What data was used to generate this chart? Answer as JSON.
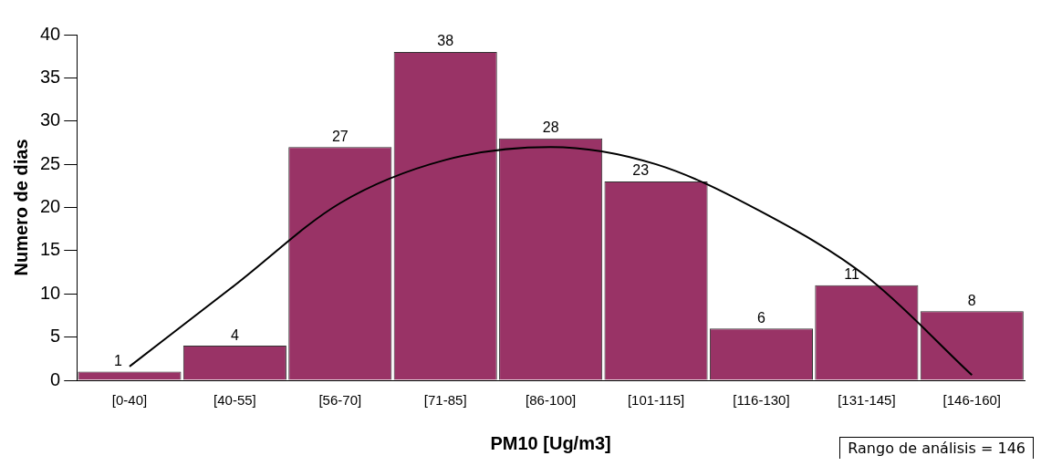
{
  "chart_data": {
    "type": "bar",
    "xlabel": "PM10 [Ug/m3]",
    "ylabel": "Numero de dias",
    "categories": [
      "[0-40]",
      "[40-55]",
      "[56-70]",
      "[71-85]",
      "[86-100]",
      "[101-115]",
      "[116-130]",
      "[131-145]",
      "[146-160]"
    ],
    "series": [
      {
        "type": "bar",
        "color": "#993366",
        "values": [
          1,
          4,
          27,
          38,
          28,
          23,
          6,
          11,
          8
        ],
        "value_labels": [
          "1",
          "4",
          "27",
          "38",
          "28",
          "23",
          "6",
          "11",
          "8"
        ]
      },
      {
        "type": "line",
        "color": "#000000",
        "values": [
          1.6,
          11,
          20.5,
          25.5,
          27,
          25,
          19.5,
          12,
          0.6
        ]
      }
    ],
    "ylim": [
      0,
      40
    ],
    "yticks": [
      0,
      5,
      10,
      15,
      20,
      25,
      30,
      35,
      40
    ],
    "grid": false,
    "legend": false,
    "marker": "none",
    "annotations": [
      "Rango de análisis = 146"
    ]
  }
}
